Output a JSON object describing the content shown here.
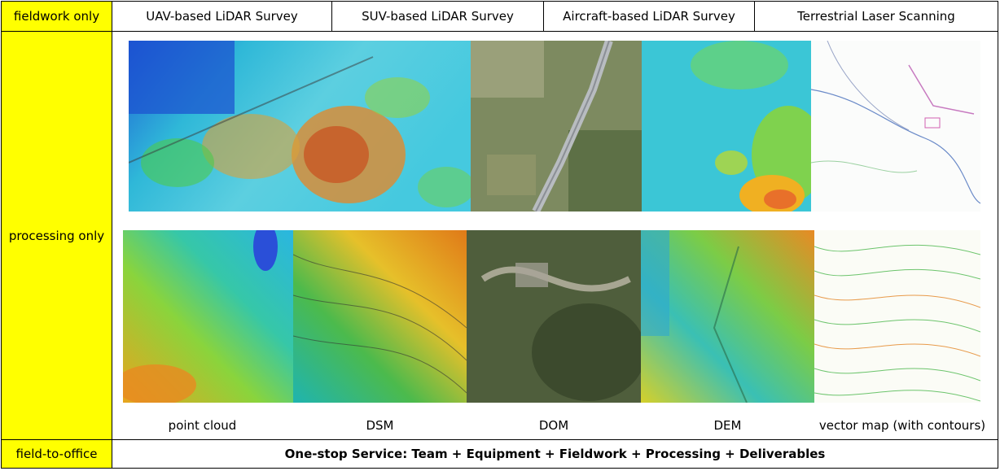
{
  "rows": {
    "fieldwork": "fieldwork only",
    "processing": "processing only",
    "field_to_office": "field-to-office"
  },
  "services": [
    "UAV-based LiDAR Survey",
    "SUV-based LiDAR Survey",
    "Aircraft-based LiDAR Survey",
    "Terrestrial Laser Scanning"
  ],
  "deliverables": [
    "point cloud",
    "DSM",
    "DOM",
    "DEM",
    "vector map (with contours)"
  ],
  "one_stop": "One-stop Service: Team + Equipment + Fieldwork + Processing + Deliverables",
  "colors": {
    "row_header": "#ffff00",
    "border": "#000000"
  }
}
